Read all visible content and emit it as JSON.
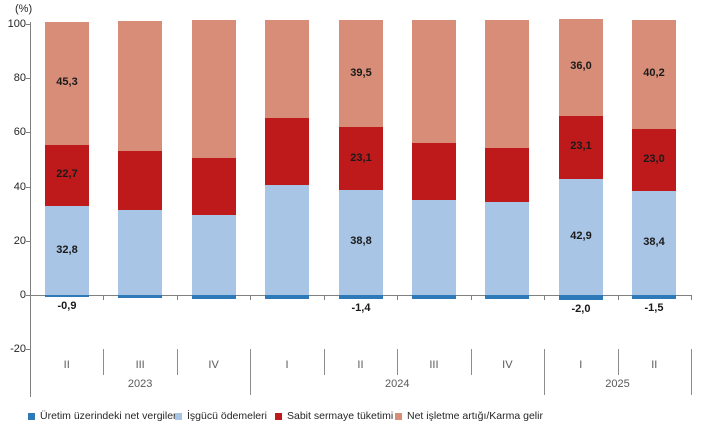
{
  "chart_data": {
    "type": "bar",
    "stacked": true,
    "title": "",
    "unit_label": "(%)",
    "ylabel": "",
    "xlabel": "",
    "ylim": [
      -20,
      100
    ],
    "yticks": [
      100,
      80,
      60,
      40,
      20,
      0,
      -20
    ],
    "grid": false,
    "legend_position": "bottom",
    "decimal_separator": ",",
    "groups": [
      {
        "year": "2023",
        "quarters": [
          "II",
          "III",
          "IV"
        ]
      },
      {
        "year": "2024",
        "quarters": [
          "I",
          "II",
          "III",
          "IV"
        ]
      },
      {
        "year": "2025",
        "quarters": [
          "I",
          "II"
        ]
      }
    ],
    "categories": [
      "2023-II",
      "2023-III",
      "2023-IV",
      "2024-I",
      "2024-II",
      "2024-III",
      "2024-IV",
      "2025-I",
      "2025-II"
    ],
    "series": [
      {
        "name": "Üretim üzerindeki net vergiler",
        "color": "#2e79b8",
        "values": [
          -0.9,
          -1.0,
          -1.3,
          -1.5,
          -1.4,
          -1.5,
          -1.6,
          -2.0,
          -1.5
        ]
      },
      {
        "name": "İşgücü ödemeleri",
        "color": "#a8c5e6",
        "values": [
          32.8,
          31.2,
          29.4,
          40.6,
          38.8,
          35.0,
          34.2,
          42.9,
          38.4
        ]
      },
      {
        "name": "Sabit sermaye tüketimi",
        "color": "#be1a1c",
        "values": [
          22.7,
          21.8,
          21.3,
          24.6,
          23.1,
          21.0,
          20.0,
          23.1,
          23.0
        ]
      },
      {
        "name": "Net işletme artığı/Karma gelir",
        "color": "#d78d77",
        "values": [
          45.3,
          48.0,
          50.6,
          36.3,
          39.5,
          45.5,
          47.4,
          36.0,
          40.2
        ]
      }
    ],
    "labeled_bar_indices": [
      0,
      4,
      7,
      8
    ],
    "visible_data_labels": {
      "2023-II": {
        "net_vergiler": "-0,9",
        "isgucu": "32,8",
        "sabit_sermaye": "22,7",
        "net_isletme": "45,3"
      },
      "2024-II": {
        "net_vergiler": "-1,4",
        "isgucu": "38,8",
        "sabit_sermaye": "23,1",
        "net_isletme": "39,5"
      },
      "2025-I": {
        "net_vergiler": "-2,0",
        "isgucu": "42,9",
        "sabit_sermaye": "23,1",
        "net_isletme": "36,0"
      },
      "2025-II": {
        "net_vergiler": "-1,5",
        "isgucu": "38,4",
        "sabit_sermaye": "23,0",
        "net_isletme": "40,2"
      }
    }
  },
  "colors": {
    "axis": "#808080",
    "separator": "#8c8c8c",
    "tick_text": "#262626",
    "category_text": "#595959",
    "data_label_text": "#1a1a1a",
    "background": "#ffffff"
  }
}
